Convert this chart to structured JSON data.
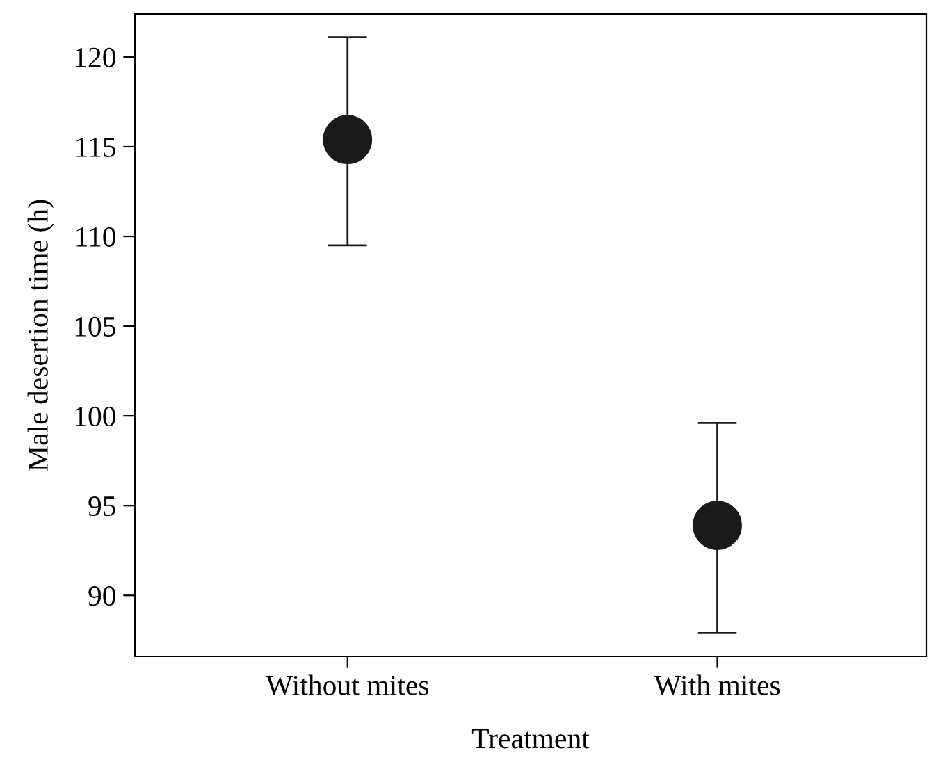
{
  "chart_data": {
    "type": "scatter",
    "xlabel": "Treatment",
    "ylabel": "Male desertion time (h)",
    "categories": [
      "Without mites",
      "With mites"
    ],
    "values": [
      115.4,
      93.9
    ],
    "errors": [
      [
        109.5,
        121.1
      ],
      [
        87.9,
        99.6
      ]
    ],
    "color": "#1a1a1a",
    "marker": "circle",
    "ylim": [
      86.6,
      122.4
    ],
    "yticks": [
      90,
      95,
      100,
      105,
      110,
      115,
      120
    ],
    "grid": false,
    "legend": false
  }
}
